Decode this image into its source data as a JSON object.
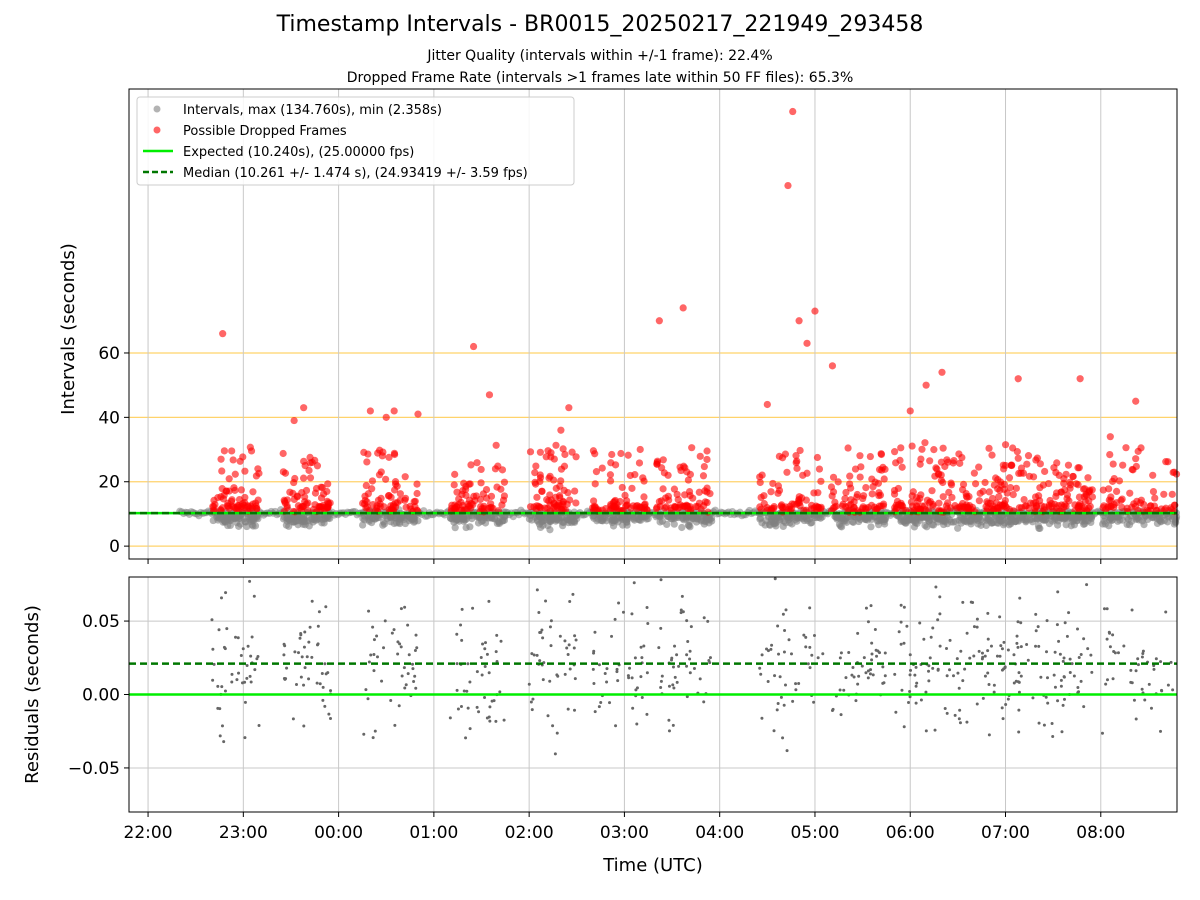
{
  "figure": {
    "title": "Timestamp Intervals - BR0015_20250217_221949_293458",
    "subtitle_jitter": "Jitter Quality (intervals within +/-1 frame): 22.4%",
    "subtitle_dropped": "Dropped Frame Rate (intervals >1 frames late within 50 FF files): 65.3%"
  },
  "colors": {
    "intervals": "#808080",
    "dropped": "#ff0000",
    "expected": "#00ee00",
    "median": "#007700",
    "hband": "#ffd36b",
    "grid": "#c8c8c8"
  },
  "chart_data": [
    {
      "type": "scatter",
      "panel": "top",
      "ylabel": "Intervals (seconds)",
      "xlabel": "",
      "xlim": [
        "21:48",
        "08:48"
      ],
      "ylim": [
        -4,
        142
      ],
      "yticks": [
        "0",
        "20",
        "40",
        "60"
      ],
      "horizontal_bands": [
        0,
        20,
        40,
        60
      ],
      "grid": "vertical",
      "legend_position": "top-left",
      "legend": [
        "Intervals, max (134.760s), min (2.358s)",
        "Possible Dropped Frames",
        "Expected (10.240s), (25.00000 fps)",
        "Median (10.261 +/- 1.474 s), (24.93419 +/- 3.59 fps)"
      ],
      "expected_interval_s": 10.24,
      "median_interval_s": 10.261,
      "interval_max_s": 134.76,
      "interval_min_s": 2.358,
      "interval_range": [
        "22:20",
        "08:48"
      ],
      "activity_bursts": [
        {
          "start": "22:40",
          "end": "23:10"
        },
        {
          "start": "23:25",
          "end": "23:55"
        },
        {
          "start": "00:15",
          "end": "00:50"
        },
        {
          "start": "01:10",
          "end": "01:45"
        },
        {
          "start": "02:00",
          "end": "02:30"
        },
        {
          "start": "02:40",
          "end": "03:15"
        },
        {
          "start": "03:20",
          "end": "03:55"
        },
        {
          "start": "04:25",
          "end": "05:05"
        },
        {
          "start": "05:10",
          "end": "05:45"
        },
        {
          "start": "05:50",
          "end": "06:20"
        },
        {
          "start": "06:20",
          "end": "06:55"
        },
        {
          "start": "06:55",
          "end": "07:25"
        },
        {
          "start": "07:25",
          "end": "07:55"
        },
        {
          "start": "08:00",
          "end": "08:48"
        }
      ],
      "labeled_outliers": [
        {
          "x": "22:47",
          "y": 66
        },
        {
          "x": "23:32",
          "y": 39
        },
        {
          "x": "23:38",
          "y": 43
        },
        {
          "x": "00:20",
          "y": 42
        },
        {
          "x": "00:30",
          "y": 40
        },
        {
          "x": "00:35",
          "y": 42
        },
        {
          "x": "00:50",
          "y": 41
        },
        {
          "x": "01:25",
          "y": 62
        },
        {
          "x": "01:35",
          "y": 47
        },
        {
          "x": "02:20",
          "y": 36
        },
        {
          "x": "02:25",
          "y": 43
        },
        {
          "x": "03:22",
          "y": 70
        },
        {
          "x": "03:37",
          "y": 74
        },
        {
          "x": "04:30",
          "y": 44
        },
        {
          "x": "04:43",
          "y": 112
        },
        {
          "x": "04:46",
          "y": 135
        },
        {
          "x": "04:50",
          "y": 70
        },
        {
          "x": "04:55",
          "y": 63
        },
        {
          "x": "05:00",
          "y": 73
        },
        {
          "x": "05:11",
          "y": 56
        },
        {
          "x": "06:00",
          "y": 42
        },
        {
          "x": "06:10",
          "y": 50
        },
        {
          "x": "06:20",
          "y": 54
        },
        {
          "x": "07:08",
          "y": 52
        },
        {
          "x": "07:47",
          "y": 52
        },
        {
          "x": "08:06",
          "y": 34
        },
        {
          "x": "08:22",
          "y": 45
        }
      ]
    },
    {
      "type": "scatter",
      "panel": "bottom",
      "ylabel": "Residuals (seconds)",
      "xlabel": "Time (UTC)",
      "xlim": [
        "21:48",
        "08:48"
      ],
      "ylim": [
        -0.08,
        0.08
      ],
      "yticks": [
        "−0.05",
        "0.00",
        "0.05"
      ],
      "xticks": [
        "22:00",
        "23:00",
        "00:00",
        "01:00",
        "02:00",
        "03:00",
        "04:00",
        "05:00",
        "06:00",
        "07:00",
        "08:00"
      ],
      "grid": "both",
      "expected_residual": 0.0,
      "median_residual": 0.021,
      "points_per_burst": 45
    }
  ]
}
